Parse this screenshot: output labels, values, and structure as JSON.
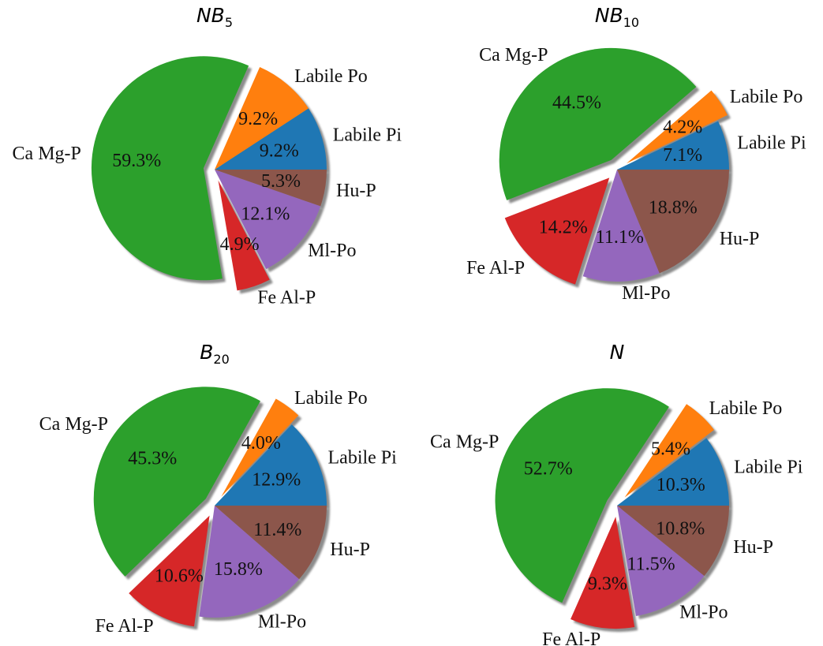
{
  "chart_data": [
    {
      "type": "pie",
      "title": "NB",
      "title_subscript": "5",
      "labels": [
        "Labile Pi",
        "Labile Po",
        "Ca Mg-P",
        "Fe Al-P",
        "Ml-Po",
        "Hu-P"
      ],
      "values": [
        9.2,
        9.2,
        59.3,
        4.9,
        12.1,
        5.3
      ],
      "pct_labels": [
        "9.2%",
        "9.2%",
        "59.3%",
        "4.9%",
        "12.1%",
        "5.3%"
      ],
      "explode": [
        0,
        0,
        0.1,
        0.1,
        0,
        0
      ],
      "shadow": true
    },
    {
      "type": "pie",
      "title": "NB",
      "title_subscript": "10",
      "labels": [
        "Labile Pi",
        "Labile Po",
        "Ca Mg-P",
        "Fe Al-P",
        "Ml-Po",
        "Hu-P"
      ],
      "values": [
        7.1,
        4.2,
        44.5,
        14.2,
        11.1,
        18.8
      ],
      "pct_labels": [
        "7.1%",
        "4.2%",
        "44.5%",
        "14.2%",
        "11.1%",
        "18.8%"
      ],
      "explode": [
        0,
        0.1,
        0.1,
        0.1,
        0,
        0
      ],
      "shadow": true
    },
    {
      "type": "pie",
      "title": "B",
      "title_subscript": "20",
      "labels": [
        "Labile Pi",
        "Labile Po",
        "Ca Mg-P",
        "Fe Al-P",
        "Ml-Po",
        "Hu-P"
      ],
      "values": [
        12.9,
        4.0,
        45.3,
        10.6,
        15.8,
        11.4
      ],
      "pct_labels": [
        "12.9%",
        "4.0%",
        "45.3%",
        "10.6%",
        "15.8%",
        "11.4%"
      ],
      "explode": [
        0,
        0.1,
        0.1,
        0.1,
        0,
        0
      ],
      "shadow": true
    },
    {
      "type": "pie",
      "title": "N",
      "title_subscript": "",
      "labels": [
        "Labile Pi",
        "Labile Po",
        "Ca Mg-P",
        "Fe Al-P",
        "Ml-Po",
        "Hu-P"
      ],
      "values": [
        10.3,
        5.4,
        52.7,
        9.3,
        11.5,
        10.8
      ],
      "pct_labels": [
        "10.3%",
        "5.4%",
        "52.7%",
        "9.3%",
        "11.5%",
        "10.8%"
      ],
      "explode": [
        0,
        0.1,
        0.1,
        0.1,
        0,
        0
      ],
      "shadow": true
    }
  ],
  "colors": [
    "#1f77b4",
    "#ff7f0e",
    "#2ca02c",
    "#d62728",
    "#9467bd",
    "#8c564b"
  ]
}
